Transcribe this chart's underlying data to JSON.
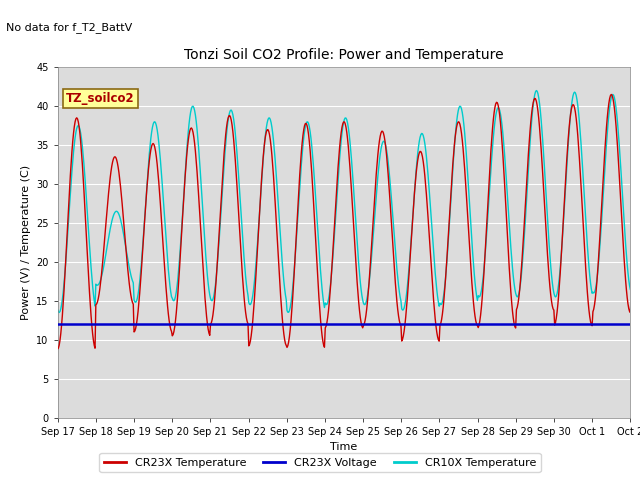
{
  "title": "Tonzi Soil CO2 Profile: Power and Temperature",
  "no_data_text": "No data for f_T2_BattV",
  "xlabel": "Time",
  "ylabel": "Power (V) / Temperature (C)",
  "ylim": [
    0,
    45
  ],
  "yticks": [
    0,
    5,
    10,
    15,
    20,
    25,
    30,
    35,
    40,
    45
  ],
  "background_color": "#dcdcdc",
  "legend_box_label": "TZ_soilco2",
  "legend_box_bg": "#ffff99",
  "legend_box_edge": "#8b6914",
  "cr23x_color": "#cc0000",
  "voltage_color": "#0000cc",
  "cr10x_color": "#00cccc",
  "voltage_value": 12.0,
  "x_labels": [
    "Sep 17",
    "Sep 18",
    "Sep 19",
    "Sep 20",
    "Sep 21",
    "Sep 22",
    "Sep 23",
    "Sep 24",
    "Sep 25",
    "Sep 26",
    "Sep 27",
    "Sep 28",
    "Sep 29",
    "Sep 30",
    "Oct 1",
    "Oct 2"
  ],
  "day_peaks_cr23x": [
    38.5,
    33.5,
    35.2,
    37.2,
    38.8,
    37.0,
    37.8,
    38.0,
    36.8,
    34.2,
    38.0,
    40.5,
    41.0,
    40.2,
    41.5,
    16.0
  ],
  "day_troughs_cr23x": [
    8.8,
    14.5,
    11.0,
    10.5,
    12.0,
    9.2,
    9.0,
    11.5,
    11.8,
    9.8,
    11.8,
    11.5,
    13.8,
    11.8,
    13.5,
    16.0
  ],
  "day_peaks_cr10x": [
    37.5,
    26.5,
    38.0,
    40.0,
    39.5,
    38.5,
    38.0,
    38.5,
    35.5,
    36.5,
    40.0,
    39.8,
    42.0,
    41.8,
    41.5,
    16.5
  ],
  "day_troughs_cr10x": [
    13.5,
    17.0,
    14.8,
    15.0,
    15.0,
    14.5,
    13.5,
    14.5,
    14.5,
    13.8,
    14.5,
    15.5,
    15.5,
    15.5,
    16.0,
    16.5
  ],
  "title_fontsize": 10,
  "axis_label_fontsize": 8,
  "tick_fontsize": 7,
  "legend_fontsize": 8,
  "no_data_fontsize": 8
}
